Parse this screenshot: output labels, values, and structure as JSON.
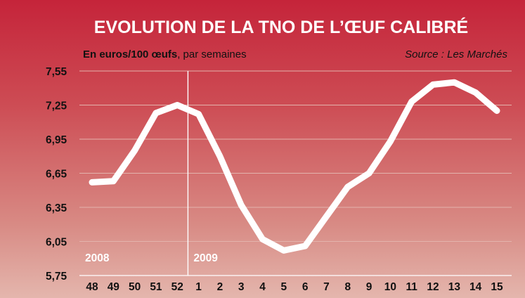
{
  "chart_data": {
    "type": "line",
    "title": "EVOLUTION DE LA TNO DE L’ŒUF CALIBRÉ",
    "subtitle_units": "En euros/100 œufs",
    "subtitle_period": ", par semaines",
    "source": "Source : Les Marchés",
    "categories": [
      "48",
      "49",
      "50",
      "51",
      "52",
      "1",
      "2",
      "3",
      "4",
      "5",
      "6",
      "7",
      "8",
      "9",
      "10",
      "11",
      "12",
      "13",
      "14",
      "15"
    ],
    "y_ticks": [
      "7,55",
      "7,25",
      "6,95",
      "6,65",
      "6,35",
      "6,05",
      "5,75"
    ],
    "ylim": [
      5.75,
      7.55
    ],
    "year_labels": [
      {
        "label": "2008",
        "from_index": 0
      },
      {
        "label": "2009",
        "from_index": 5
      }
    ],
    "series": [
      {
        "values": [
          6.57,
          6.58,
          6.85,
          7.18,
          7.25,
          7.17,
          6.8,
          6.37,
          6.07,
          5.97,
          6.01,
          6.27,
          6.53,
          6.65,
          6.93,
          7.28,
          7.43,
          7.45,
          7.36,
          7.2
        ]
      }
    ],
    "grid": true,
    "colors": {
      "background_top": "#c5243a",
      "background_bottom": "#e4b6ad",
      "line": "#ffffff",
      "grid": "#e3b3ac"
    }
  }
}
